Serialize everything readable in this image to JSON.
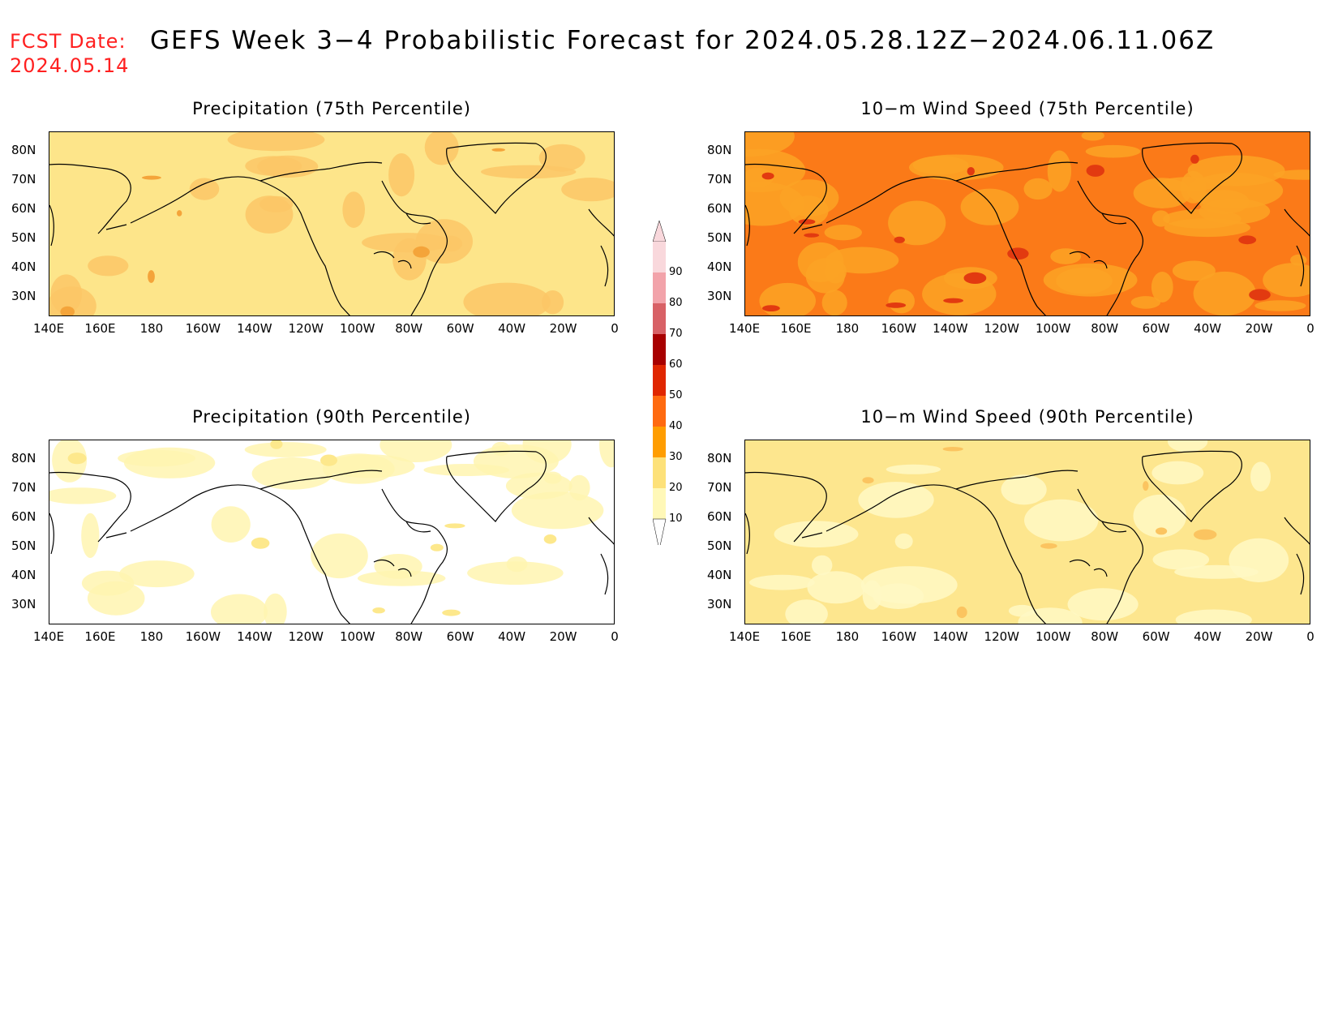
{
  "header": {
    "fcst_line1": "FCST Date:",
    "fcst_line2": "2024.05.14",
    "title": "GEFS Week 3−4 Probabilistic Forecast for 2024.05.28.12Z−2024.06.11.06Z"
  },
  "axes": {
    "lat_labels": [
      "80N",
      "70N",
      "60N",
      "50N",
      "40N",
      "30N"
    ],
    "lon_labels": [
      "140E",
      "160E",
      "180",
      "160W",
      "140W",
      "120W",
      "100W",
      "80W",
      "60W",
      "40W",
      "20W",
      "0"
    ]
  },
  "panels": [
    {
      "title": "Precipitation (75th Percentile)",
      "fill": "#fde58a",
      "patch": "#fbc766",
      "accent": "#f4a43a",
      "density": 0.35
    },
    {
      "title": "10−m Wind Speed (75th Percentile)",
      "fill": "#fb7a18",
      "patch": "#fca324",
      "accent": "#e23a10",
      "density": 0.75
    },
    {
      "title": "Precipitation (90th Percentile)",
      "fill": "#ffffff",
      "patch": "#fff4b0",
      "accent": "#fde88c",
      "density": 0.5
    },
    {
      "title": "10−m Wind Speed (90th Percentile)",
      "fill": "#fde68e",
      "patch": "#fff8c4",
      "accent": "#fbc460",
      "density": 0.4
    }
  ],
  "colorbar": {
    "levels": [
      "90",
      "80",
      "70",
      "60",
      "50",
      "40",
      "30",
      "20",
      "10"
    ],
    "colors": [
      "#f9d8dc",
      "#f2a3aa",
      "#d86166",
      "#a80000",
      "#e02600",
      "#ff6a10",
      "#ff9d00",
      "#fde179",
      "#fff8b8"
    ]
  },
  "chart_data": {
    "type": "heatmap",
    "xlabel": "",
    "ylabel": "",
    "x_ticks": [
      "140E",
      "160E",
      "180",
      "160W",
      "140W",
      "120W",
      "100W",
      "80W",
      "60W",
      "40W",
      "20W",
      "0"
    ],
    "y_ticks": [
      "80N",
      "70N",
      "60N",
      "50N",
      "40N",
      "30N"
    ],
    "color_levels": [
      10,
      20,
      30,
      40,
      50,
      60,
      70,
      80,
      90
    ]
  }
}
